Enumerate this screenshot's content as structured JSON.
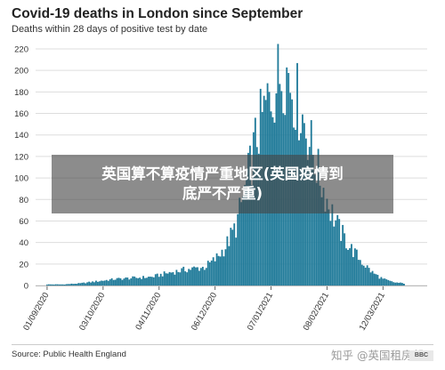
{
  "header": {
    "title": "Covid-19 deaths in London since September",
    "subtitle": "Deaths within 28 days of positive test by date"
  },
  "footer": {
    "source": "Source: Public Health England",
    "watermark": "知乎 @英国租房帮",
    "logo_text": "BBC"
  },
  "banner": {
    "line1": "英国算不算疫情严重地区(英国疫情到",
    "line2": "底严不严重)"
  },
  "colors": {
    "bar": "#1f7a99",
    "grid": "#dddddd",
    "axis_text": "#333333"
  },
  "chart_data": {
    "type": "bar",
    "title": "Covid-19 deaths in London since September",
    "subtitle": "Deaths within 28 days of positive test by date",
    "xlabel": "",
    "ylabel": "",
    "ylim": [
      0,
      220
    ],
    "yticks": [
      0,
      20,
      40,
      60,
      80,
      100,
      120,
      140,
      160,
      180,
      200,
      220
    ],
    "grid": true,
    "x_start": "2020-09-01",
    "xtick_labels": [
      "01/09/2020",
      "03/10/2020",
      "04/11/2020",
      "06/12/2020",
      "07/01/2021",
      "08/02/2021",
      "12/03/2021"
    ],
    "xtick_dates": [
      "2020-09-01",
      "2020-10-03",
      "2020-11-04",
      "2020-12-06",
      "2021-01-07",
      "2021-02-08",
      "2021-03-12"
    ],
    "anchors": [
      [
        "2020-09-01",
        1
      ],
      [
        "2020-09-10",
        1
      ],
      [
        "2020-09-20",
        2
      ],
      [
        "2020-09-30",
        4
      ],
      [
        "2020-10-10",
        6
      ],
      [
        "2020-10-20",
        7
      ],
      [
        "2020-10-31",
        8
      ],
      [
        "2020-11-10",
        12
      ],
      [
        "2020-11-20",
        15
      ],
      [
        "2020-11-30",
        17
      ],
      [
        "2020-12-06",
        24
      ],
      [
        "2020-12-12",
        36
      ],
      [
        "2020-12-18",
        55
      ],
      [
        "2020-12-24",
        95
      ],
      [
        "2020-12-30",
        140
      ],
      [
        "2021-01-04",
        165
      ],
      [
        "2021-01-09",
        185
      ],
      [
        "2021-01-12",
        195
      ],
      [
        "2021-01-14",
        204
      ],
      [
        "2021-01-17",
        196
      ],
      [
        "2021-01-22",
        172
      ],
      [
        "2021-01-28",
        142
      ],
      [
        "2021-02-03",
        105
      ],
      [
        "2021-02-09",
        75
      ],
      [
        "2021-02-15",
        52
      ],
      [
        "2021-02-21",
        36
      ],
      [
        "2021-02-28",
        22
      ],
      [
        "2021-03-06",
        12
      ],
      [
        "2021-03-12",
        6
      ],
      [
        "2021-03-18",
        3
      ],
      [
        "2021-03-24",
        2
      ]
    ]
  }
}
